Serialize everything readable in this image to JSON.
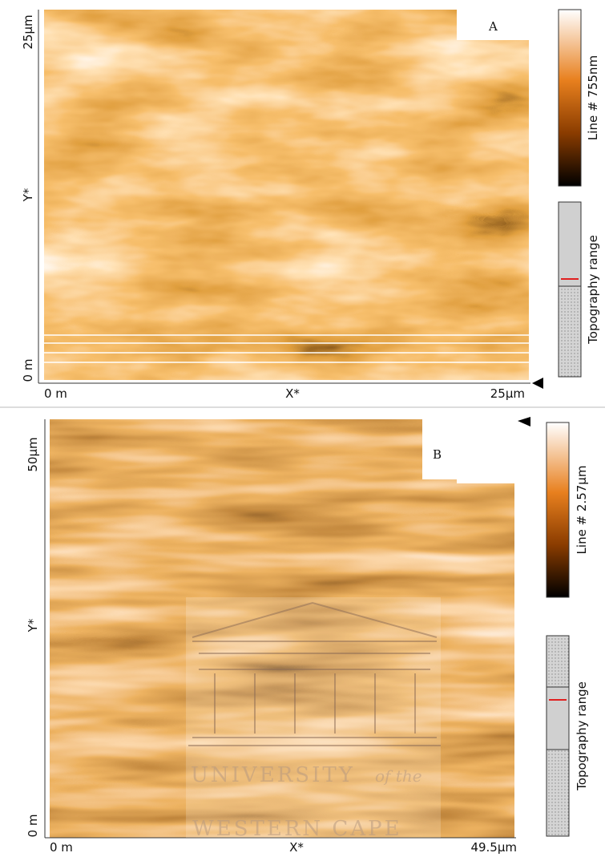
{
  "panels": [
    {
      "label": "A",
      "y_axis": {
        "top": "25µm",
        "title": "Y*",
        "bottom": "0 m"
      },
      "x_axis": {
        "left": "0 m",
        "title": "X*",
        "right": "25µm"
      },
      "colorbar_label": "Line # 755nm",
      "range_label": "Topography range"
    },
    {
      "label": "B",
      "y_axis": {
        "top": "50µm",
        "title": "Y*",
        "bottom": "0 m"
      },
      "x_axis": {
        "left": "0 m",
        "title": "X*",
        "right": "49.5µm"
      },
      "colorbar_label": "Line # 2.57µm",
      "range_label": "Topography range"
    }
  ],
  "watermark": {
    "line1": "UNIVERSITY",
    "italic": "of the",
    "line2": "WESTERN CAPE"
  }
}
